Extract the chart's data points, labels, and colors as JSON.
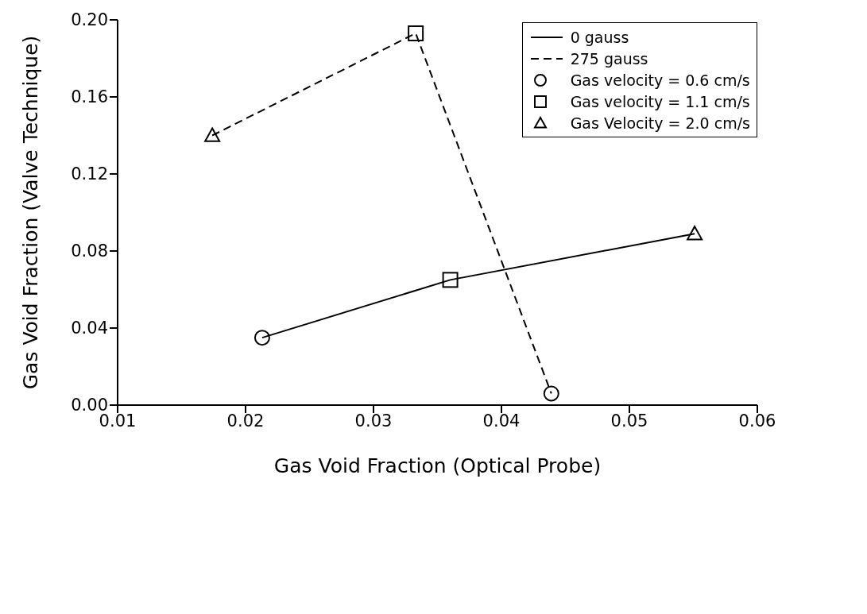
{
  "chart_data": {
    "type": "scatter",
    "xlabel": "Gas Void Fraction (Optical Probe)",
    "ylabel": "Gas Void Fraction (Valve Technique)",
    "xlim": [
      0.01,
      0.06
    ],
    "xticks": [
      0.01,
      0.02,
      0.03,
      0.04,
      0.05,
      0.06
    ],
    "ylim": [
      0,
      0.2
    ],
    "yticks": [
      {
        "value": 0,
        "label": "0.00"
      },
      0.04,
      0.08,
      0.12,
      0.16,
      {
        "value": 0.2,
        "label": "0.20"
      }
    ],
    "grid": false,
    "legend": "top right",
    "series": [
      {
        "name": "0 gauss",
        "type": "line",
        "color": "#000000",
        "line_style": "solid",
        "marker": "none",
        "x": [
          0.0213,
          0.036,
          0.0551
        ],
        "values": [
          0.035,
          0.065,
          0.089
        ]
      },
      {
        "name": "275 gauss",
        "type": "line",
        "color": "#000000",
        "line_style": "dashed",
        "marker": "none",
        "x": [
          0.0174,
          0.0333,
          0.0439
        ],
        "values": [
          0.14,
          0.193,
          0.006
        ]
      },
      {
        "name": "Gas velocity = 0.6 cm/s",
        "type": "scatter",
        "color": "#000000",
        "marker": "circle",
        "x": [
          0.0213,
          0.0439
        ],
        "values": [
          0.035,
          0.006
        ]
      },
      {
        "name": "Gas velocity = 1.1 cm/s",
        "type": "scatter",
        "color": "#000000",
        "marker": "square",
        "x": [
          0.036,
          0.0333
        ],
        "values": [
          0.065,
          0.193
        ]
      },
      {
        "name": "Gas Velocity = 2.0 cm/s",
        "type": "scatter",
        "color": "#000000",
        "marker": "triangle",
        "x": [
          0.0551,
          0.0174
        ],
        "values": [
          0.089,
          0.14
        ]
      }
    ]
  }
}
